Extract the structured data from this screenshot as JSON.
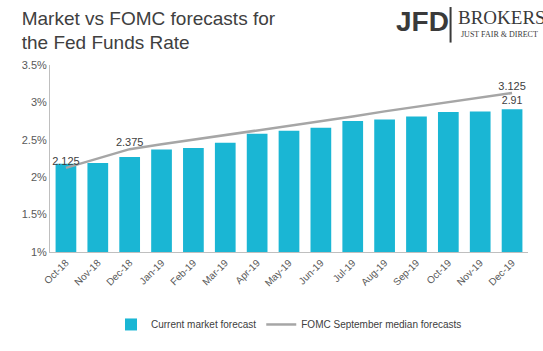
{
  "chart_data": {
    "type": "bar",
    "title": "Market vs FOMC forecasts for\nthe Fed Funds Rate",
    "annotations": [
      "JFD",
      "BROKERS",
      "JUST FAIR & DIRECT"
    ],
    "categories": [
      "Oct-18",
      "Nov-18",
      "Dec-18",
      "Jan-19",
      "Feb-19",
      "Mar-19",
      "Apr-19",
      "May-19",
      "Jun-19",
      "Jul-19",
      "Aug-19",
      "Sep-19",
      "Oct-19",
      "Nov-19",
      "Dec-19"
    ],
    "series": [
      {
        "name": "Current market forecast",
        "type": "bar",
        "color": "#1ab6d4",
        "values": [
          2.18,
          2.19,
          2.27,
          2.37,
          2.39,
          2.46,
          2.58,
          2.62,
          2.66,
          2.75,
          2.77,
          2.81,
          2.87,
          2.88,
          2.91
        ],
        "value_labels": [
          null,
          null,
          null,
          null,
          null,
          null,
          null,
          null,
          null,
          null,
          null,
          null,
          null,
          null,
          "2.91"
        ]
      },
      {
        "name": "FOMC September median forecasts",
        "type": "line",
        "color": "#a6a6a6",
        "values": [
          2.125,
          2.25,
          2.375,
          2.44,
          2.5,
          2.56,
          2.63,
          2.69,
          2.75,
          2.81,
          2.88,
          2.94,
          3.0,
          3.06,
          3.125
        ],
        "value_labels": [
          "2.125",
          null,
          "2.375",
          null,
          null,
          null,
          null,
          null,
          null,
          null,
          null,
          null,
          null,
          null,
          "3.125"
        ]
      }
    ],
    "ylim": [
      1,
      3.5
    ],
    "yticks": [
      {
        "value": 1,
        "label": "1%"
      },
      {
        "value": 1.5,
        "label": "1.5%"
      },
      {
        "value": 2,
        "label": "2%"
      },
      {
        "value": 2.5,
        "label": "2.5%"
      },
      {
        "value": 3,
        "label": "3%"
      },
      {
        "value": 3.5,
        "label": "3.5%"
      }
    ],
    "grid": false,
    "legend": "bottom",
    "data_labels": true
  }
}
